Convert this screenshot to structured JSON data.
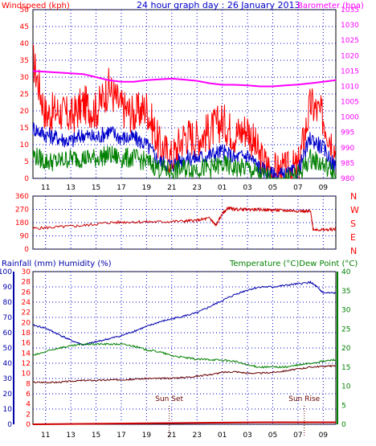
{
  "title": "24 hour graph day : 26 January 2013",
  "colors": {
    "gust": "#ff0000",
    "wind": "#0000cc",
    "windAvg": "#008000",
    "baro": "#ff00ff",
    "direction": "#cc0000",
    "humidity": "#0000aa",
    "temperature": "#008000",
    "dewpoint": "#660000",
    "rain": "#cc0000",
    "grid": "#0000cc",
    "axisLabel": "#0000cc",
    "rightLabel": "#008000",
    "dirLabel": "#ff0000"
  },
  "chart_data": [
    {
      "type": "line",
      "name": "wind-baro",
      "title": "",
      "left_label": "Windspeed (kph)",
      "right_label": "Barometer (hpa)",
      "x_ticks": [
        "11",
        "13",
        "15",
        "17",
        "19",
        "21",
        "23",
        "01",
        "03",
        "05",
        "07",
        "09"
      ],
      "y_left": {
        "min": 0,
        "max": 50,
        "step": 5
      },
      "y_right": {
        "min": 980,
        "max": 1035,
        "step": 5
      },
      "grid": true,
      "series": [
        {
          "key": "gust",
          "hours": [
            10,
            11,
            12,
            13,
            14,
            15,
            16,
            17,
            18,
            19,
            20,
            21,
            22,
            23,
            24,
            25,
            26,
            27,
            28,
            29,
            30,
            31,
            32,
            33,
            34
          ],
          "values": [
            35,
            19,
            20,
            18,
            22,
            20,
            27,
            21,
            19,
            21,
            10,
            6,
            13,
            12,
            14,
            17,
            13,
            15,
            6,
            2,
            2,
            3,
            22,
            18,
            8
          ]
        },
        {
          "key": "wind",
          "hours": [
            10,
            11,
            12,
            13,
            14,
            15,
            16,
            17,
            18,
            19,
            20,
            21,
            22,
            23,
            24,
            25,
            26,
            27,
            28,
            29,
            30,
            31,
            32,
            33,
            34
          ],
          "values": [
            15,
            13,
            12,
            11,
            13,
            12,
            14,
            12,
            12,
            10,
            5,
            4,
            6,
            6,
            7,
            8,
            6,
            7,
            3,
            1,
            1,
            2,
            12,
            9,
            3
          ]
        },
        {
          "key": "windAvg",
          "hours": [
            10,
            11,
            12,
            13,
            14,
            15,
            16,
            17,
            18,
            19,
            20,
            21,
            22,
            23,
            24,
            25,
            26,
            27,
            28,
            29,
            30,
            31,
            32,
            33,
            34
          ],
          "values": [
            7,
            5,
            5,
            6,
            6,
            6,
            7,
            6,
            6,
            5,
            3,
            2,
            3,
            3,
            3,
            4,
            3,
            3,
            1,
            0,
            0,
            1,
            6,
            4,
            1
          ]
        },
        {
          "key": "baro",
          "axis": "right",
          "hours": [
            10,
            12,
            14,
            16,
            17,
            18,
            19,
            20,
            21,
            22,
            23,
            24,
            25,
            26,
            27,
            28,
            29,
            30,
            31,
            32,
            33,
            34
          ],
          "values": [
            1015,
            1014.5,
            1014,
            1012,
            1011.5,
            1011.5,
            1012,
            1012.3,
            1012.5,
            1012.2,
            1011.8,
            1011,
            1010.5,
            1010.5,
            1010.3,
            1010,
            1010,
            1010.3,
            1010.6,
            1011,
            1011.5,
            1012
          ]
        }
      ]
    },
    {
      "type": "line",
      "name": "direction",
      "title": "",
      "y_left": {
        "min": 0,
        "max": 360,
        "step": 90
      },
      "y_ticks": [
        "360",
        "270",
        "180",
        "90",
        "0"
      ],
      "right_labels": [
        "N",
        "W",
        "S",
        "E",
        "N"
      ],
      "x_ticks": [
        "11",
        "13",
        "15",
        "17",
        "19",
        "21",
        "23",
        "01",
        "03",
        "05",
        "07",
        "09"
      ],
      "grid": true,
      "series": [
        {
          "key": "direction",
          "hours": [
            10,
            12,
            14,
            16,
            18,
            20,
            22,
            23,
            24,
            24.5,
            25,
            25.5,
            26,
            27,
            28,
            29,
            30,
            31,
            32,
            32.2,
            33,
            34
          ],
          "values": [
            140,
            150,
            160,
            180,
            185,
            185,
            190,
            195,
            210,
            160,
            240,
            280,
            270,
            270,
            268,
            265,
            262,
            260,
            255,
            135,
            130,
            135
          ]
        }
      ]
    },
    {
      "type": "line",
      "name": "temp-hum-rain",
      "title": "",
      "left_label": "Rainfall (mm)  Humidity (%)",
      "right_label": "Temperature (°C)Dew Point (°C)",
      "x_ticks": [
        "11",
        "13",
        "15",
        "17",
        "19",
        "21",
        "23",
        "01",
        "03",
        "05",
        "07",
        "09"
      ],
      "y_humidity": {
        "min": 0,
        "max": 100,
        "step": 10
      },
      "y_rain": {
        "min": 0,
        "max": 30,
        "step": 2
      },
      "y_temp": {
        "min": 0,
        "max": 40,
        "step": 5
      },
      "annotations": [
        {
          "label": "Sun Set",
          "hour": 20.8
        },
        {
          "label": "Sun Rise",
          "hour": 31.5
        }
      ],
      "grid": true,
      "series": [
        {
          "key": "humidity",
          "hours": [
            10,
            11,
            12,
            13,
            14,
            15,
            16,
            17,
            18,
            19,
            20,
            21,
            22,
            23,
            24,
            25,
            26,
            27,
            28,
            29,
            30,
            31,
            32,
            32.5,
            33,
            34
          ],
          "values": [
            65,
            63,
            59,
            55,
            52,
            54,
            56,
            58,
            61,
            64,
            67,
            69,
            71,
            73,
            77,
            81,
            85,
            88,
            90,
            90,
            91,
            92,
            93,
            90,
            86,
            86
          ]
        },
        {
          "key": "temperature",
          "hours": [
            10,
            11,
            12,
            13,
            14,
            15,
            16,
            17,
            18,
            19,
            20,
            21,
            22,
            23,
            24,
            25,
            26,
            27,
            28,
            29,
            30,
            31,
            32,
            33,
            34
          ],
          "values": [
            18,
            19,
            20,
            20.5,
            21,
            21,
            21,
            21,
            20.5,
            19.5,
            19,
            18,
            17.5,
            17,
            17,
            16.8,
            16.5,
            15.5,
            15,
            15,
            15,
            15.5,
            16,
            16.5,
            17
          ]
        },
        {
          "key": "dewpoint",
          "hours": [
            10,
            11,
            12,
            13,
            14,
            15,
            16,
            17,
            18,
            19,
            20,
            21,
            22,
            23,
            24,
            25,
            26,
            27,
            28,
            29,
            30,
            31,
            32,
            33,
            34
          ],
          "values": [
            11,
            11,
            11,
            11.3,
            11.5,
            11.5,
            11.6,
            11.7,
            11.8,
            12,
            12,
            12.1,
            12.3,
            12.6,
            13,
            13.6,
            13.8,
            13.4,
            13.4,
            13.6,
            14,
            14.5,
            15,
            15.2,
            15.3
          ]
        },
        {
          "key": "rain",
          "hours": [
            10,
            28,
            34
          ],
          "values": [
            0,
            0.4,
            0.4
          ]
        }
      ]
    }
  ]
}
